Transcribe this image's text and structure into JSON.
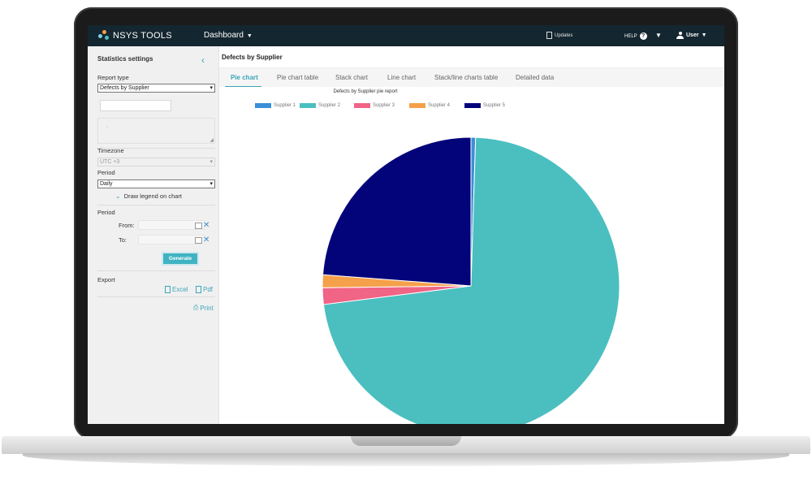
{
  "app": {
    "logo_text": "NSYS TOOLS",
    "nav_dashboard": "Dashboard",
    "updates": "Updates",
    "help": "HELP",
    "user": "User"
  },
  "sidebar": {
    "title": "Statistics settings",
    "report_type_label": "Report type",
    "report_type_value": "Defects by Supplier",
    "timezone_label": "Timezone",
    "timezone_value": "UTC +3",
    "period_label": "Period",
    "period_value": "Daily",
    "draw_legend": "Draw legend on chart",
    "period2_label": "Period",
    "from_label": "From:",
    "to_label": "To:",
    "generate": "Generate",
    "export_label": "Export",
    "excel": "Excel",
    "pdf": "Pdf",
    "print": "Print"
  },
  "main": {
    "title": "Defects by Supplier",
    "tabs": [
      {
        "label": "Pie chart"
      },
      {
        "label": "Pie chart table"
      },
      {
        "label": "Stack chart"
      },
      {
        "label": "Line chart"
      },
      {
        "label": "Stack/line charts table"
      },
      {
        "label": "Detailed data"
      }
    ]
  },
  "chart_data": {
    "type": "pie",
    "title": "Defects by Supplier pie report",
    "legend_position": "top",
    "slices": [
      {
        "label": "Supplier 1",
        "value": 0.5,
        "color": "#3a8fd9"
      },
      {
        "label": "Supplier 2",
        "value": 72.5,
        "color": "#4bbfbf"
      },
      {
        "label": "Supplier 3",
        "value": 1.8,
        "color": "#f06486"
      },
      {
        "label": "Supplier 4",
        "value": 1.4,
        "color": "#f5a04a"
      },
      {
        "label": "Supplier 5",
        "value": 23.8,
        "color": "#03037a"
      }
    ]
  },
  "colors": {
    "topbar": "#14262f",
    "accent": "#3aa6b9"
  }
}
